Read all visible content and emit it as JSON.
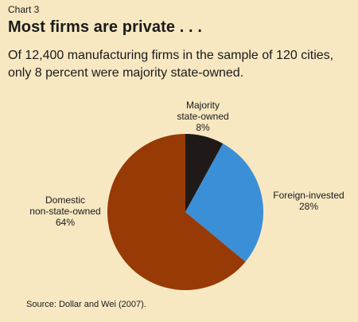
{
  "header": {
    "chart_label": "Chart 3",
    "title": "Most firms are private . . .",
    "subtitle": "Of 12,400 manufacturing firms in the sample of 120 cities, only 8 percent were majority state-owned."
  },
  "source": "Source:  Dollar and Wei (2007).",
  "colors": {
    "background": "#f7e8c2",
    "state_owned": "#1f1a18",
    "foreign_invested": "#3b8fd6",
    "domestic": "#973a06"
  },
  "chart_data": {
    "type": "pie",
    "title": "Most firms are private . . .",
    "subtitle": "Of 12,400 manufacturing firms in the sample of 120 cities, only 8 percent were majority state-owned.",
    "slices": [
      {
        "label_lines": [
          "Majority",
          "state-owned",
          "8%"
        ],
        "value": 8,
        "color": "#1f1a18"
      },
      {
        "label_lines": [
          "Foreign-invested",
          "28%"
        ],
        "value": 28,
        "color": "#3b8fd6"
      },
      {
        "label_lines": [
          "Domestic",
          "non-state-owned",
          "64%"
        ],
        "value": 64,
        "color": "#973a06"
      }
    ],
    "legend": "none"
  }
}
